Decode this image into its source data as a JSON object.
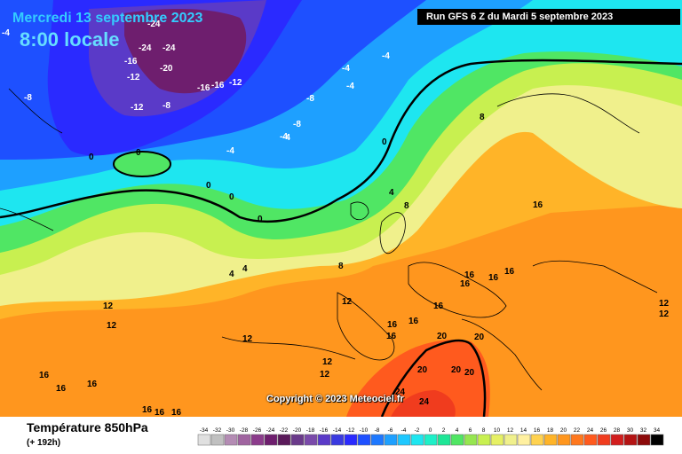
{
  "header": {
    "date": "Mercredi 13 septembre 2023",
    "time": "8:00 locale",
    "run": "Run GFS 6 Z du Mardi 5 septembre 2023"
  },
  "copyright": "Copyright © 2023 Meteociel.fr",
  "footer": {
    "variable": "Température 850hPa",
    "lead_time": "(+ 192h)"
  },
  "legend": {
    "ticks": [
      "-34",
      "-32",
      "-30",
      "-28",
      "-26",
      "-24",
      "-22",
      "-20",
      "-18",
      "-16",
      "-14",
      "-12",
      "-10",
      "-8",
      "-6",
      "-4",
      "-2",
      "0",
      "2",
      "4",
      "6",
      "8",
      "10",
      "12",
      "14",
      "16",
      "18",
      "20",
      "22",
      "24",
      "26",
      "28",
      "30",
      "32",
      "34"
    ],
    "colors": [
      "#e0e0e0",
      "#c0c0c0",
      "#b48cb4",
      "#a064a0",
      "#8c3c8c",
      "#6e1e6e",
      "#5a1a5a",
      "#6a3a8a",
      "#7a4aaa",
      "#5a3ac8",
      "#3a3ae0",
      "#2a2aff",
      "#1e50ff",
      "#1e78ff",
      "#1ea0ff",
      "#1ec8ff",
      "#1ee6f0",
      "#1ef0c8",
      "#1ee696",
      "#50e664",
      "#96e650",
      "#c8f050",
      "#e6f064",
      "#f0f08c",
      "#fff0a0",
      "#ffd250",
      "#ffb428",
      "#ff961e",
      "#ff781e",
      "#ff5a1e",
      "#f03c1e",
      "#d21e1e",
      "#b41414",
      "#8c0a0a",
      "#000000"
    ]
  },
  "map_labels": [
    {
      "v": "-24"
    },
    {
      "v": "-24"
    },
    {
      "v": "-24"
    },
    {
      "v": "-20"
    },
    {
      "v": "-16"
    },
    {
      "v": "-16"
    },
    {
      "v": "-16"
    },
    {
      "v": "-12"
    },
    {
      "v": "-12"
    },
    {
      "v": "-12"
    },
    {
      "v": "-8"
    },
    {
      "v": "-8"
    },
    {
      "v": "-8"
    },
    {
      "v": "-8"
    },
    {
      "v": "-4"
    },
    {
      "v": "-4"
    },
    {
      "v": "-4"
    },
    {
      "v": "-4"
    },
    {
      "v": "-4"
    },
    {
      "v": "-4"
    },
    {
      "v": "-4"
    },
    {
      "v": "0"
    },
    {
      "v": "0"
    },
    {
      "v": "0"
    },
    {
      "v": "0"
    },
    {
      "v": "0"
    },
    {
      "v": "0"
    },
    {
      "v": "4"
    },
    {
      "v": "4"
    },
    {
      "v": "4"
    },
    {
      "v": "8"
    },
    {
      "v": "8"
    },
    {
      "v": "8"
    },
    {
      "v": "12"
    },
    {
      "v": "12"
    },
    {
      "v": "12"
    },
    {
      "v": "12"
    },
    {
      "v": "12"
    },
    {
      "v": "12"
    },
    {
      "v": "12"
    },
    {
      "v": "12"
    },
    {
      "v": "16"
    },
    {
      "v": "16"
    },
    {
      "v": "16"
    },
    {
      "v": "16"
    },
    {
      "v": "16"
    },
    {
      "v": "16"
    },
    {
      "v": "16"
    },
    {
      "v": "16"
    },
    {
      "v": "16"
    },
    {
      "v": "16"
    },
    {
      "v": "16"
    },
    {
      "v": "16"
    },
    {
      "v": "16"
    },
    {
      "v": "16"
    },
    {
      "v": "16"
    },
    {
      "v": "20"
    },
    {
      "v": "20"
    },
    {
      "v": "20"
    },
    {
      "v": "20"
    },
    {
      "v": "20"
    },
    {
      "v": "24"
    },
    {
      "v": "24"
    }
  ]
}
